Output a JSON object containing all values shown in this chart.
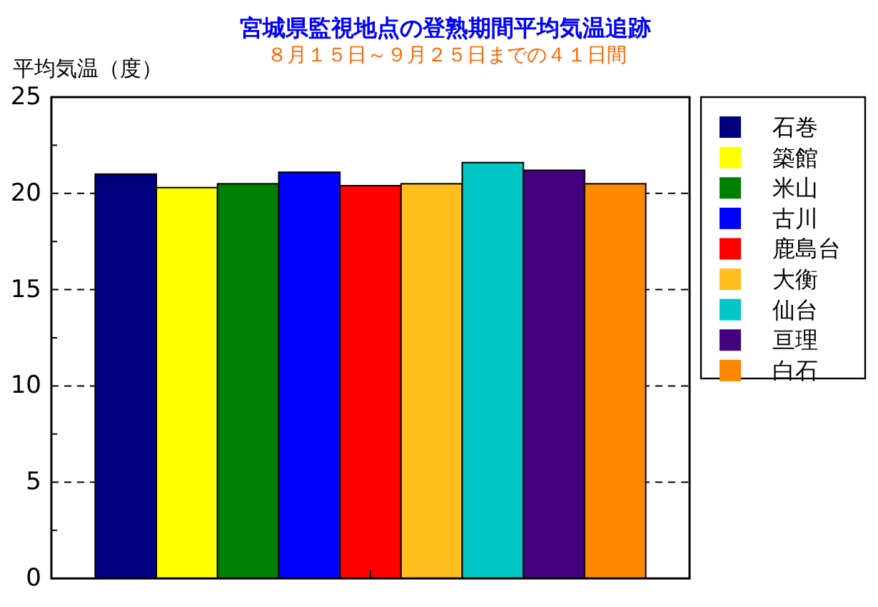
{
  "chart_data": {
    "type": "bar",
    "title": "宮城県監視地点の登熟期間平均気温追跡",
    "subtitle": "８月１５日～９月２５日までの４１日間",
    "ylabel": "平均気温（度）",
    "categories": [
      null
    ],
    "series": [
      {
        "name": "石巻",
        "color": "#000080",
        "values": [
          21.0
        ]
      },
      {
        "name": "築館",
        "color": "#ffff00",
        "values": [
          20.3
        ]
      },
      {
        "name": "米山",
        "color": "#008000",
        "values": [
          20.5
        ]
      },
      {
        "name": "古川",
        "color": "#0000ff",
        "values": [
          21.1
        ]
      },
      {
        "name": "鹿島台",
        "color": "#ff0000",
        "values": [
          20.4
        ]
      },
      {
        "name": "大衡",
        "color": "#ffbe1e",
        "values": [
          20.5
        ]
      },
      {
        "name": "仙台",
        "color": "#00c6c6",
        "values": [
          21.6
        ]
      },
      {
        "name": "亘理",
        "color": "#43007f",
        "values": [
          21.2
        ]
      },
      {
        "name": "白石",
        "color": "#ff8800",
        "values": [
          20.5
        ]
      }
    ],
    "ylim": [
      0,
      25
    ],
    "yticks": [
      0,
      {
        "value": 2.5,
        "label": null
      },
      5,
      {
        "value": 7.5,
        "label": null
      },
      10,
      {
        "value": 12.5,
        "label": null
      },
      15,
      {
        "value": 17.5,
        "label": null
      },
      20,
      {
        "value": 22.5,
        "label": null
      },
      25
    ],
    "grid": "y",
    "legend": "right"
  }
}
